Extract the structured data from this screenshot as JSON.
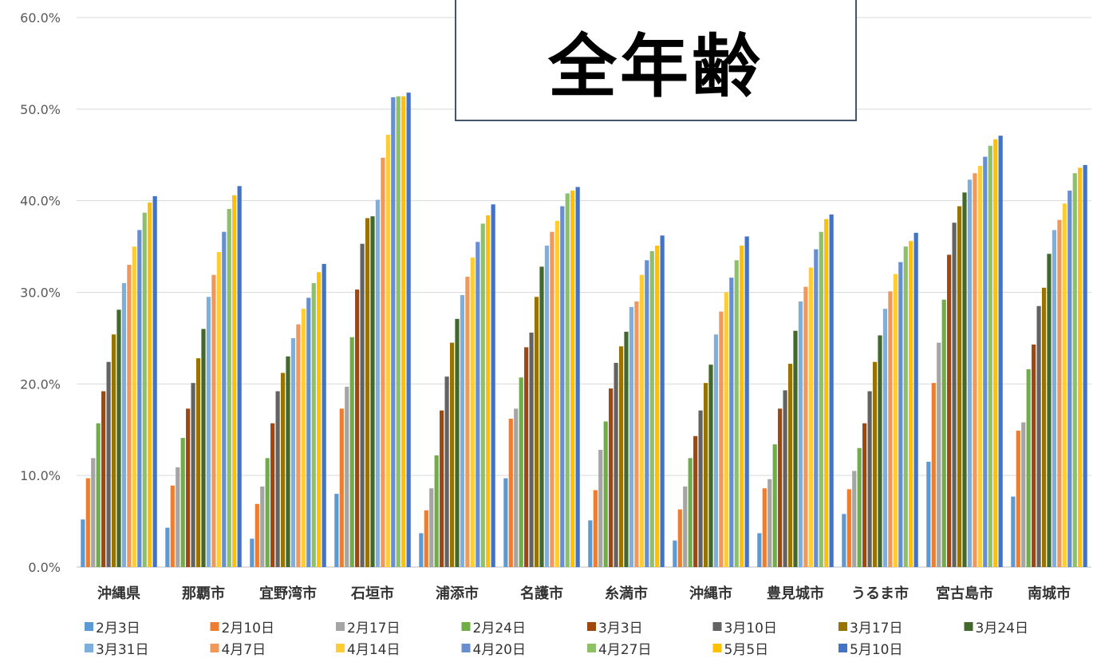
{
  "chart_data": {
    "type": "bar",
    "title": "全年齢",
    "xlabel": "",
    "ylabel": "",
    "ylim": [
      0,
      60
    ],
    "yticks": [
      "0.0%",
      "10.0%",
      "20.0%",
      "30.0%",
      "40.0%",
      "50.0%",
      "60.0%"
    ],
    "grid": true,
    "legend_position": "bottom",
    "categories": [
      "沖縄県",
      "那覇市",
      "宜野湾市",
      "石垣市",
      "浦添市",
      "名護市",
      "糸満市",
      "沖縄市",
      "豊見城市",
      "うるま市",
      "宮古島市",
      "南城市"
    ],
    "series": [
      {
        "name": "2月3日",
        "color": "#5B9BD5",
        "values": [
          5.2,
          4.3,
          3.1,
          8.0,
          3.7,
          9.7,
          5.1,
          2.9,
          3.7,
          5.8,
          11.5,
          7.7
        ]
      },
      {
        "name": "2月10日",
        "color": "#ED7D31",
        "values": [
          9.7,
          8.9,
          6.9,
          17.3,
          6.2,
          16.2,
          8.4,
          6.3,
          8.6,
          8.5,
          20.1,
          14.9
        ]
      },
      {
        "name": "2月17日",
        "color": "#A5A5A5",
        "values": [
          11.9,
          10.9,
          8.8,
          19.7,
          8.6,
          17.3,
          12.8,
          8.8,
          9.6,
          10.5,
          24.5,
          15.8
        ]
      },
      {
        "name": "2月24日",
        "color": "#70AD47",
        "values": [
          15.7,
          14.1,
          11.9,
          25.1,
          12.2,
          20.7,
          15.9,
          11.9,
          13.4,
          13.0,
          29.2,
          21.6
        ]
      },
      {
        "name": "3月3日",
        "color": "#9E480E",
        "values": [
          19.2,
          17.3,
          15.7,
          30.3,
          17.1,
          24.0,
          19.5,
          14.3,
          17.3,
          15.7,
          34.1,
          24.3
        ]
      },
      {
        "name": "3月10日",
        "color": "#636363",
        "values": [
          22.4,
          20.1,
          19.2,
          35.3,
          20.8,
          25.6,
          22.3,
          17.1,
          19.3,
          19.2,
          37.6,
          28.5
        ]
      },
      {
        "name": "3月17日",
        "color": "#997300",
        "values": [
          25.4,
          22.8,
          21.2,
          38.1,
          24.5,
          29.5,
          24.1,
          20.1,
          22.2,
          22.4,
          39.4,
          30.5
        ]
      },
      {
        "name": "3月24日",
        "color": "#43682B",
        "values": [
          28.1,
          26.0,
          23.0,
          38.3,
          27.1,
          32.8,
          25.7,
          22.1,
          25.8,
          25.3,
          40.9,
          34.2
        ]
      },
      {
        "name": "3月31日",
        "color": "#7CAFDD",
        "values": [
          31.0,
          29.5,
          25.0,
          40.1,
          29.7,
          35.1,
          28.4,
          25.4,
          29.0,
          28.2,
          42.3,
          36.8
        ]
      },
      {
        "name": "4月7日",
        "color": "#F1975A",
        "values": [
          33.0,
          31.9,
          26.5,
          44.7,
          31.7,
          36.6,
          29.0,
          27.9,
          30.6,
          30.1,
          43.0,
          37.9
        ]
      },
      {
        "name": "4月14日",
        "color": "#FFCD33",
        "values": [
          35.0,
          34.4,
          28.2,
          47.2,
          33.8,
          37.8,
          31.9,
          30.0,
          32.7,
          32.0,
          43.8,
          39.7
        ]
      },
      {
        "name": "4月20日",
        "color": "#698ED0",
        "values": [
          36.8,
          36.6,
          29.4,
          51.3,
          35.5,
          39.4,
          33.5,
          31.6,
          34.7,
          33.3,
          44.8,
          41.1
        ]
      },
      {
        "name": "4月27日",
        "color": "#8CC168",
        "values": [
          38.7,
          39.1,
          31.0,
          51.4,
          37.5,
          40.8,
          34.5,
          33.5,
          36.6,
          35.0,
          46.0,
          43.0
        ]
      },
      {
        "name": "5月5日",
        "color": "#FFC000",
        "values": [
          39.8,
          40.6,
          32.2,
          51.4,
          38.4,
          41.1,
          35.1,
          35.1,
          38.0,
          35.6,
          46.7,
          43.6
        ]
      },
      {
        "name": "5月10日",
        "color": "#4472C4",
        "values": [
          40.5,
          41.6,
          33.1,
          51.8,
          39.6,
          41.5,
          36.2,
          36.1,
          38.5,
          36.5,
          47.1,
          43.9
        ]
      }
    ]
  }
}
